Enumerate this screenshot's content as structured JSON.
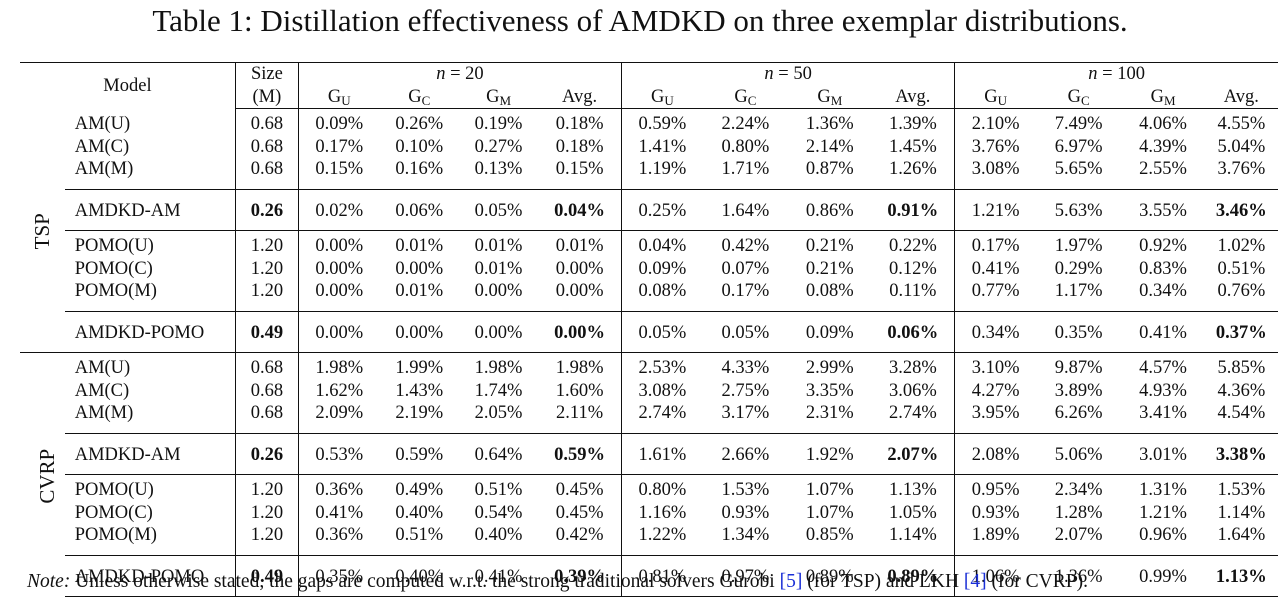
{
  "caption": "Table 1: Distillation effectiveness of AMDKD on three exemplar distributions.",
  "headers": {
    "model": "Model",
    "size_line1": "Size",
    "size_line2": "(M)",
    "n20": "n = 20",
    "n50": "n = 50",
    "n100": "n = 100",
    "g": "G",
    "sub_u": "U",
    "sub_c": "C",
    "sub_m": "M",
    "avg": "Avg."
  },
  "problems": {
    "tsp": "TSP",
    "cvrp": "CVRP"
  },
  "tsp": {
    "am_group": [
      {
        "model": "AM(U)",
        "size": "0.68",
        "v": [
          "0.09%",
          "0.26%",
          "0.19%",
          "0.18%",
          "0.59%",
          "2.24%",
          "1.36%",
          "1.39%",
          "2.10%",
          "7.49%",
          "4.06%",
          "4.55%"
        ]
      },
      {
        "model": "AM(C)",
        "size": "0.68",
        "v": [
          "0.17%",
          "0.10%",
          "0.27%",
          "0.18%",
          "1.41%",
          "0.80%",
          "2.14%",
          "1.45%",
          "3.76%",
          "6.97%",
          "4.39%",
          "5.04%"
        ]
      },
      {
        "model": "AM(M)",
        "size": "0.68",
        "v": [
          "0.15%",
          "0.16%",
          "0.13%",
          "0.15%",
          "1.19%",
          "1.71%",
          "0.87%",
          "1.26%",
          "3.08%",
          "5.65%",
          "2.55%",
          "3.76%"
        ]
      }
    ],
    "amdkd_am": {
      "model": "AMDKD-AM",
      "size": "0.26",
      "v": [
        "0.02%",
        "0.06%",
        "0.05%",
        "0.04%",
        "0.25%",
        "1.64%",
        "0.86%",
        "0.91%",
        "1.21%",
        "5.63%",
        "3.55%",
        "3.46%"
      ]
    },
    "pomo_group": [
      {
        "model": "POMO(U)",
        "size": "1.20",
        "v": [
          "0.00%",
          "0.01%",
          "0.01%",
          "0.01%",
          "0.04%",
          "0.42%",
          "0.21%",
          "0.22%",
          "0.17%",
          "1.97%",
          "0.92%",
          "1.02%"
        ]
      },
      {
        "model": "POMO(C)",
        "size": "1.20",
        "v": [
          "0.00%",
          "0.00%",
          "0.01%",
          "0.00%",
          "0.09%",
          "0.07%",
          "0.21%",
          "0.12%",
          "0.41%",
          "0.29%",
          "0.83%",
          "0.51%"
        ]
      },
      {
        "model": "POMO(M)",
        "size": "1.20",
        "v": [
          "0.00%",
          "0.01%",
          "0.00%",
          "0.00%",
          "0.08%",
          "0.17%",
          "0.08%",
          "0.11%",
          "0.77%",
          "1.17%",
          "0.34%",
          "0.76%"
        ]
      }
    ],
    "amdkd_pomo": {
      "model": "AMDKD-POMO",
      "size": "0.49",
      "v": [
        "0.00%",
        "0.00%",
        "0.00%",
        "0.00%",
        "0.05%",
        "0.05%",
        "0.09%",
        "0.06%",
        "0.34%",
        "0.35%",
        "0.41%",
        "0.37%"
      ]
    }
  },
  "cvrp": {
    "am_group": [
      {
        "model": "AM(U)",
        "size": "0.68",
        "v": [
          "1.98%",
          "1.99%",
          "1.98%",
          "1.98%",
          "2.53%",
          "4.33%",
          "2.99%",
          "3.28%",
          "3.10%",
          "9.87%",
          "4.57%",
          "5.85%"
        ]
      },
      {
        "model": "AM(C)",
        "size": "0.68",
        "v": [
          "1.62%",
          "1.43%",
          "1.74%",
          "1.60%",
          "3.08%",
          "2.75%",
          "3.35%",
          "3.06%",
          "4.27%",
          "3.89%",
          "4.93%",
          "4.36%"
        ]
      },
      {
        "model": "AM(M)",
        "size": "0.68",
        "v": [
          "2.09%",
          "2.19%",
          "2.05%",
          "2.11%",
          "2.74%",
          "3.17%",
          "2.31%",
          "2.74%",
          "3.95%",
          "6.26%",
          "3.41%",
          "4.54%"
        ]
      }
    ],
    "amdkd_am": {
      "model": "AMDKD-AM",
      "size": "0.26",
      "v": [
        "0.53%",
        "0.59%",
        "0.64%",
        "0.59%",
        "1.61%",
        "2.66%",
        "1.92%",
        "2.07%",
        "2.08%",
        "5.06%",
        "3.01%",
        "3.38%"
      ]
    },
    "pomo_group": [
      {
        "model": "POMO(U)",
        "size": "1.20",
        "v": [
          "0.36%",
          "0.49%",
          "0.51%",
          "0.45%",
          "0.80%",
          "1.53%",
          "1.07%",
          "1.13%",
          "0.95%",
          "2.34%",
          "1.31%",
          "1.53%"
        ]
      },
      {
        "model": "POMO(C)",
        "size": "1.20",
        "v": [
          "0.41%",
          "0.40%",
          "0.54%",
          "0.45%",
          "1.16%",
          "0.93%",
          "1.07%",
          "1.05%",
          "0.93%",
          "1.28%",
          "1.21%",
          "1.14%"
        ]
      },
      {
        "model": "POMO(M)",
        "size": "1.20",
        "v": [
          "0.36%",
          "0.51%",
          "0.40%",
          "0.42%",
          "1.22%",
          "1.34%",
          "0.85%",
          "1.14%",
          "1.89%",
          "2.07%",
          "0.96%",
          "1.64%"
        ]
      }
    ],
    "amdkd_pomo": {
      "model": "AMDKD-POMO",
      "size": "0.49",
      "v": [
        "0.35%",
        "0.40%",
        "0.41%",
        "0.39%",
        "0.81%",
        "0.97%",
        "0.89%",
        "0.89%",
        "1.06%",
        "1.36%",
        "0.99%",
        "1.13%"
      ]
    }
  },
  "note": {
    "label": "Note:",
    "text1": " Unless otherwise stated, the gaps are computed w.r.t. the strong traditional solvers Gurobi ",
    "ref1": "[5]",
    "text2": " (for TSP) and LKH ",
    "ref2": "[4]",
    "text3": " (for CVRP)."
  }
}
